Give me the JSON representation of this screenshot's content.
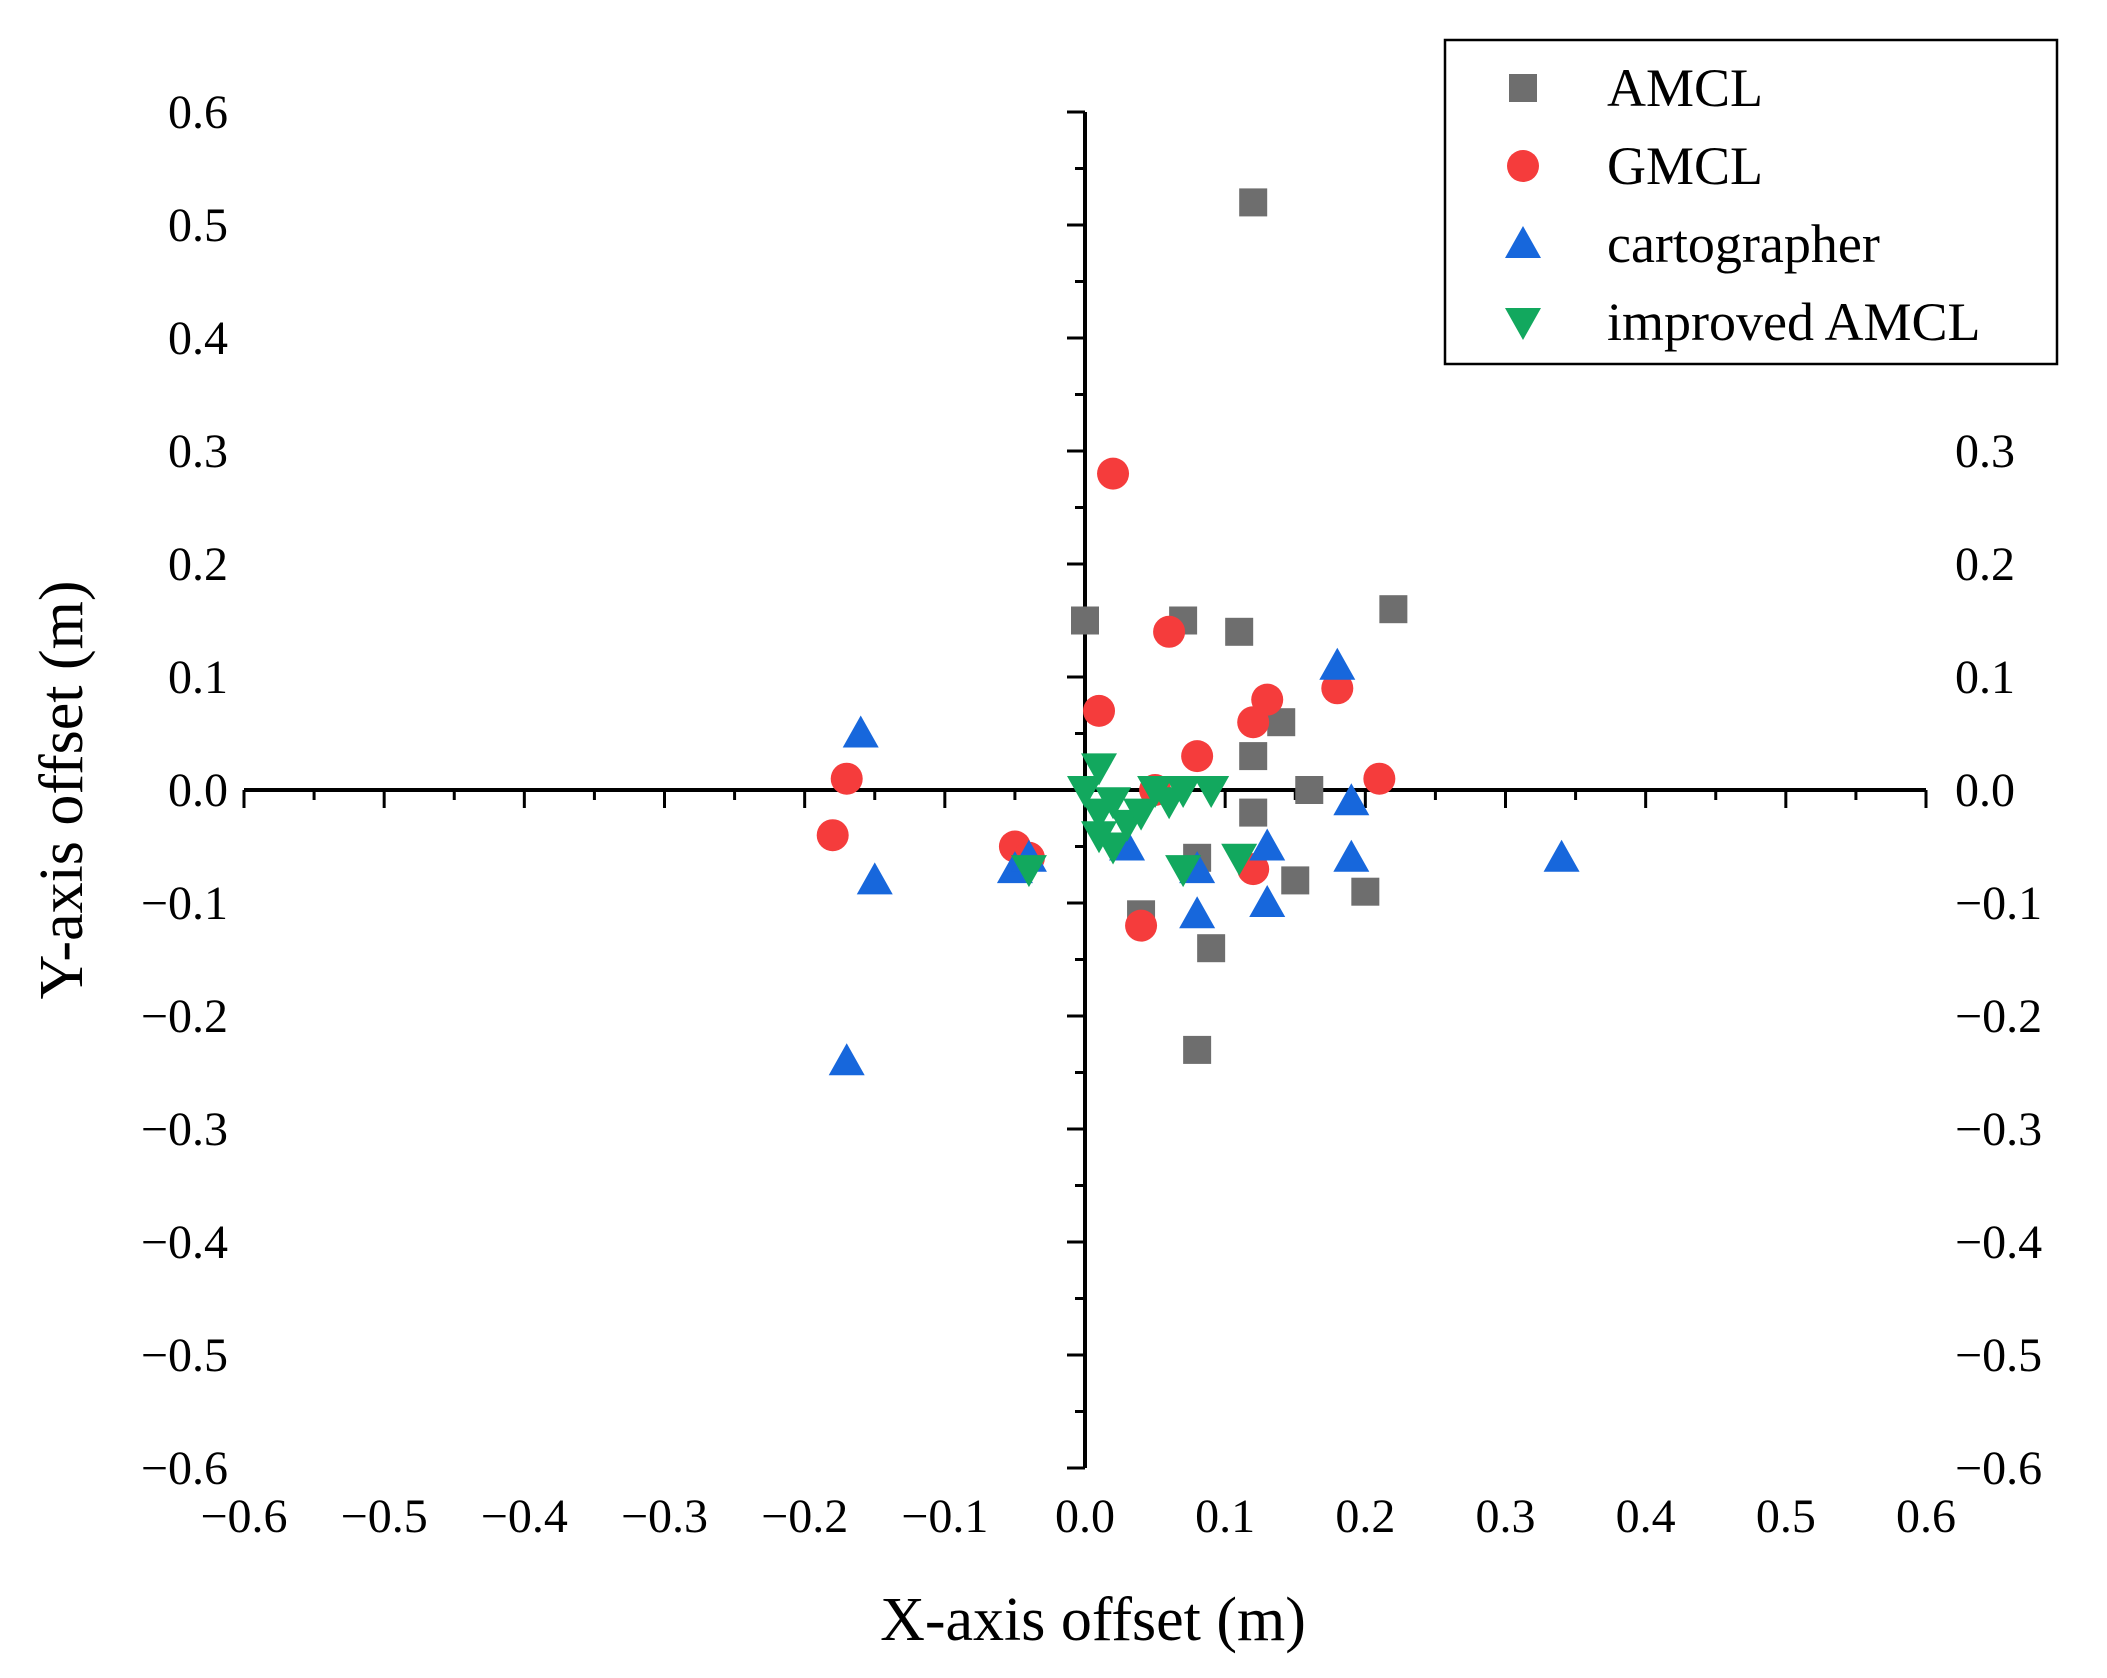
{
  "chart_data": {
    "type": "scatter",
    "xlabel": "X-axis offset (m)",
    "ylabel": "Y-axis offset (m)",
    "xlim": [
      -0.6,
      0.6
    ],
    "ylim": [
      -0.6,
      0.6
    ],
    "x_ticks": [
      "−0.6",
      "−0.5",
      "−0.4",
      "−0.3",
      "−0.2",
      "−0.1",
      "0.0",
      "0.1",
      "0.2",
      "0.3",
      "0.4",
      "0.5",
      "0.6"
    ],
    "y_ticks": [
      "0.6",
      "0.5",
      "0.4",
      "0.3",
      "0.2",
      "0.1",
      "0.0",
      "−0.1",
      "−0.2",
      "−0.3",
      "−0.4",
      "−0.5",
      "−0.6"
    ],
    "right_y_ticks": [
      "0.3",
      "0.2",
      "0.1",
      "0.0",
      "−0.1",
      "−0.2",
      "−0.3",
      "−0.4",
      "−0.5",
      "−0.6"
    ],
    "grid": false,
    "legend_position": "top-right",
    "series": [
      {
        "name": "AMCL",
        "marker": "square",
        "color": "#6e6e6e",
        "points": [
          [
            0.12,
            0.52
          ],
          [
            0.0,
            0.15
          ],
          [
            0.07,
            0.15
          ],
          [
            0.11,
            0.14
          ],
          [
            0.22,
            0.16
          ],
          [
            0.14,
            0.06
          ],
          [
            0.12,
            0.03
          ],
          [
            0.16,
            0.0
          ],
          [
            0.12,
            -0.02
          ],
          [
            0.08,
            -0.06
          ],
          [
            0.15,
            -0.08
          ],
          [
            0.2,
            -0.09
          ],
          [
            0.04,
            -0.11
          ],
          [
            0.09,
            -0.14
          ],
          [
            0.08,
            -0.23
          ]
        ]
      },
      {
        "name": "GMCL",
        "marker": "circle",
        "color": "#f53c3c",
        "points": [
          [
            0.02,
            0.28
          ],
          [
            0.06,
            0.14
          ],
          [
            0.01,
            0.07
          ],
          [
            0.13,
            0.08
          ],
          [
            0.12,
            0.06
          ],
          [
            0.18,
            0.09
          ],
          [
            0.08,
            0.03
          ],
          [
            0.05,
            0.0
          ],
          [
            0.21,
            0.01
          ],
          [
            -0.17,
            0.01
          ],
          [
            -0.18,
            -0.04
          ],
          [
            -0.05,
            -0.05
          ],
          [
            -0.04,
            -0.06
          ],
          [
            0.12,
            -0.07
          ],
          [
            0.04,
            -0.12
          ]
        ]
      },
      {
        "name": "cartographer",
        "marker": "triangle-up",
        "color": "#1767dc",
        "points": [
          [
            -0.16,
            0.05
          ],
          [
            0.18,
            0.11
          ],
          [
            0.19,
            -0.01
          ],
          [
            -0.15,
            -0.08
          ],
          [
            -0.05,
            -0.07
          ],
          [
            -0.04,
            -0.06
          ],
          [
            0.03,
            -0.05
          ],
          [
            0.13,
            -0.05
          ],
          [
            0.19,
            -0.06
          ],
          [
            0.34,
            -0.06
          ],
          [
            0.08,
            -0.07
          ],
          [
            0.13,
            -0.1
          ],
          [
            0.08,
            -0.11
          ],
          [
            -0.17,
            -0.24
          ]
        ]
      },
      {
        "name": "improved AMCL",
        "marker": "triangle-down",
        "color": "#12a85e",
        "points": [
          [
            0.01,
            0.02
          ],
          [
            0.0,
            0.0
          ],
          [
            0.02,
            -0.01
          ],
          [
            0.01,
            -0.02
          ],
          [
            0.03,
            -0.03
          ],
          [
            0.01,
            -0.04
          ],
          [
            0.02,
            -0.05
          ],
          [
            0.04,
            -0.02
          ],
          [
            0.05,
            0.0
          ],
          [
            0.06,
            -0.01
          ],
          [
            0.07,
            0.0
          ],
          [
            0.09,
            0.0
          ],
          [
            0.11,
            -0.06
          ],
          [
            0.07,
            -0.07
          ],
          [
            -0.04,
            -0.07
          ]
        ]
      }
    ]
  }
}
